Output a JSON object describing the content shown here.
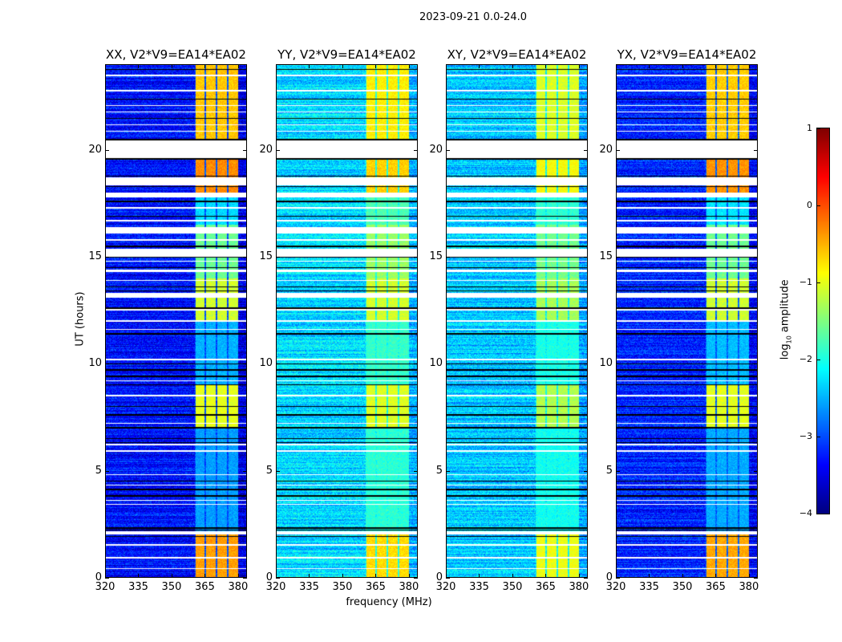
{
  "chart_data": {
    "type": "heatmap",
    "title": "2023-09-21 0.0-24.0",
    "xlabel": "frequency (MHz)",
    "ylabel": "UT (hours)",
    "xlim": [
      320,
      384
    ],
    "ylim": [
      0,
      24
    ],
    "xticks": [
      "320",
      "335",
      "350",
      "365",
      "380"
    ],
    "xtick_values": [
      320,
      335,
      350,
      365,
      380
    ],
    "yticks": [
      "0",
      "5",
      "10",
      "15",
      "20"
    ],
    "ytick_values": [
      0,
      5,
      10,
      15,
      20
    ],
    "colorbar": {
      "label": "log10 amplitude",
      "label_main": "log",
      "label_sub": "10",
      "label_rest": " amplitude",
      "colormap": "jet",
      "range": [
        -4,
        1
      ],
      "ticks": [
        "−4",
        "−3",
        "−2",
        "−1",
        "0",
        "1"
      ],
      "tick_values": [
        -4,
        -3,
        -2,
        -1,
        0,
        1
      ]
    },
    "panels": [
      {
        "title": "XX, V2*V9=EA14*EA02",
        "base_level": -3.3,
        "band_boost": 1.0
      },
      {
        "title": "YY, V2*V9=EA14*EA02",
        "base_level": -2.3,
        "band_boost": 0.55
      },
      {
        "title": "XY, V2*V9=EA14*EA02",
        "base_level": -2.4,
        "band_boost": 0.5
      },
      {
        "title": "YX, V2*V9=EA14*EA02",
        "base_level": -3.2,
        "band_boost": 0.95
      }
    ],
    "rfi_subbands_mhz": [
      [
        360.8,
        365.1
      ],
      [
        365.8,
        370.2
      ],
      [
        370.9,
        375.2
      ],
      [
        375.9,
        380.3
      ]
    ],
    "rfi_level_by_time": [
      {
        "t0": 0,
        "t1": 2,
        "level": -0.4
      },
      {
        "t0": 2,
        "t1": 7,
        "level": -2.6
      },
      {
        "t0": 7,
        "t1": 9,
        "level": -1.0
      },
      {
        "t0": 9,
        "t1": 12,
        "level": -2.5
      },
      {
        "t0": 12,
        "t1": 14,
        "level": -1.1
      },
      {
        "t0": 14,
        "t1": 16.5,
        "level": -1.6
      },
      {
        "t0": 16.5,
        "t1": 18,
        "level": -2.3
      },
      {
        "t0": 18,
        "t1": 20,
        "level": -0.3
      },
      {
        "t0": 20,
        "t1": 24,
        "level": -0.6
      }
    ],
    "flagged_blocks_hours": [
      [
        19.65,
        20.45
      ],
      [
        18.35,
        18.75
      ],
      [
        17.8,
        18.0
      ],
      [
        16.1,
        16.4
      ],
      [
        15.0,
        15.4
      ],
      [
        13.1,
        13.3
      ],
      [
        12.5,
        12.65
      ],
      [
        14.3,
        14.4
      ],
      [
        2.0,
        2.15
      ]
    ],
    "flagged_lines_hours": [
      23.5,
      22.8,
      22.1,
      21.8,
      21.2,
      20.9,
      17.3,
      16.7,
      15.8,
      14.8,
      13.9,
      12.0,
      11.6,
      10.2,
      9.2,
      8.5,
      7.2,
      6.2,
      5.9,
      4.8,
      4.3,
      3.6,
      3.4,
      1.5,
      0.9,
      0.4
    ],
    "zero_lines_hours": [
      23.8,
      22.4,
      21.5,
      20.5,
      19.6,
      18.8,
      18.3,
      17.6,
      16.9,
      15.5,
      15.0,
      14.5,
      13.6,
      13.4,
      12.6,
      11.4,
      10.0,
      9.7,
      9.4,
      9.0,
      8.0,
      7.6,
      7.0,
      6.5,
      6.3,
      4.5,
      4.1,
      3.8,
      2.3,
      2.2,
      1.9
    ]
  }
}
